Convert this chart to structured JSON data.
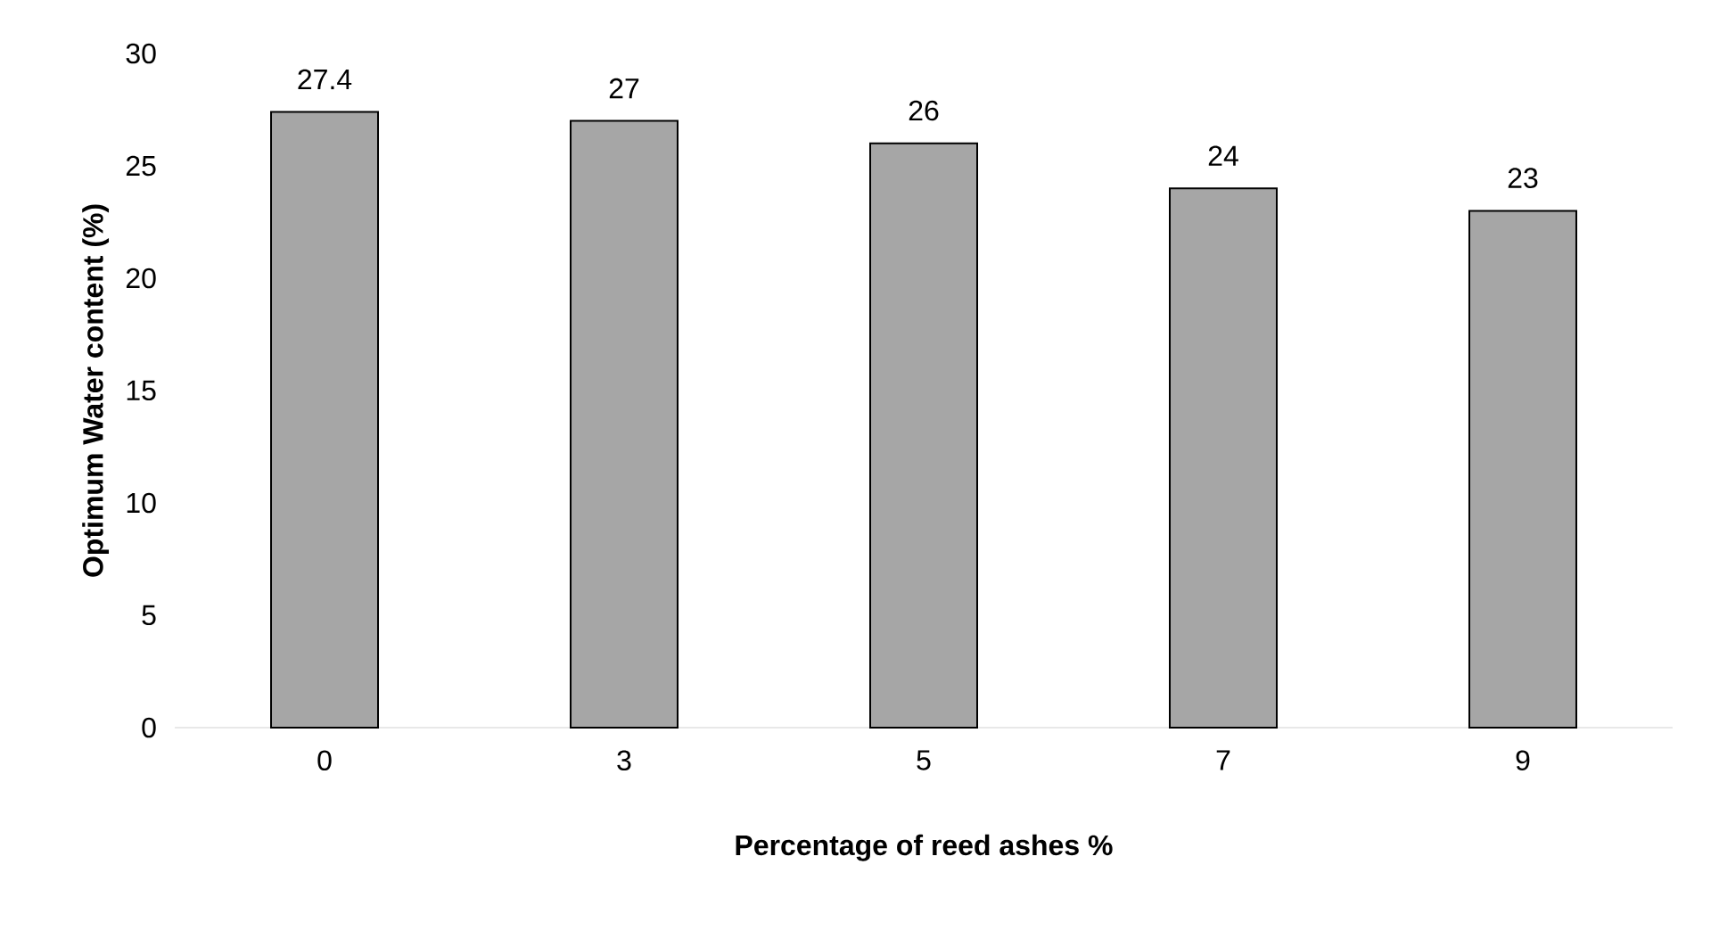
{
  "chart_data": {
    "type": "bar",
    "xlabel": "Percentage of reed ashes %",
    "ylabel": "Optimum Water content (%)",
    "categories": [
      "0",
      "3",
      "5",
      "7",
      "9"
    ],
    "values": [
      27.4,
      27,
      26,
      24,
      23
    ],
    "color": "#a6a6a6",
    "ylim": [
      0,
      30
    ],
    "yticks": [
      0,
      5,
      10,
      15,
      20,
      25,
      30
    ],
    "data_labels": true,
    "grid": false
  }
}
